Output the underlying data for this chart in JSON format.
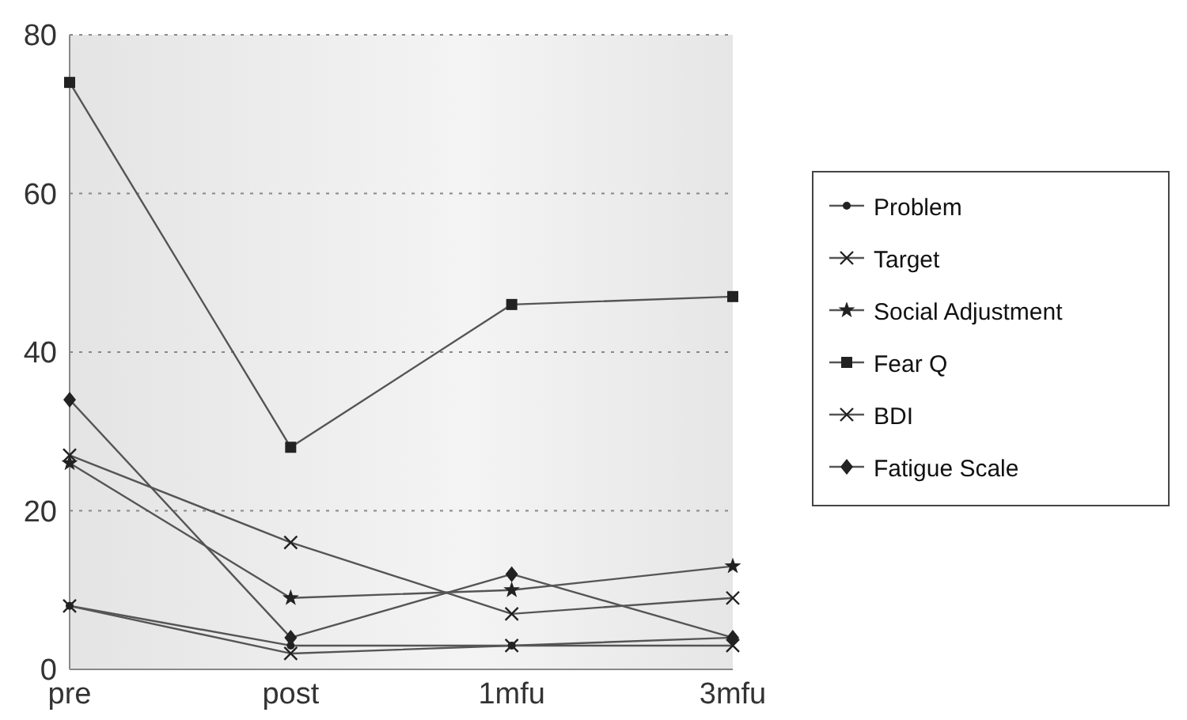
{
  "chart_data": {
    "type": "line",
    "categories": [
      "pre",
      "post",
      "1mfu",
      "3mfu"
    ],
    "series": [
      {
        "name": "Problem",
        "color": "#555555",
        "marker": "circle",
        "values": [
          8,
          3,
          3,
          4
        ]
      },
      {
        "name": "Target",
        "color": "#555555",
        "marker": "cross",
        "values": [
          8,
          2,
          3,
          3
        ]
      },
      {
        "name": "Social Adjustment",
        "color": "#555555",
        "marker": "star",
        "values": [
          26,
          9,
          10,
          13
        ]
      },
      {
        "name": "Fear Q",
        "color": "#555555",
        "marker": "square",
        "values": [
          74,
          28,
          46,
          47
        ]
      },
      {
        "name": "BDI",
        "color": "#555555",
        "marker": "cross",
        "values": [
          27,
          16,
          7,
          9
        ]
      },
      {
        "name": "Fatigue Scale",
        "color": "#555555",
        "marker": "diamond",
        "values": [
          34,
          4,
          12,
          4
        ]
      }
    ],
    "ylim": [
      0,
      80
    ],
    "yticks": [
      0,
      20,
      40,
      60,
      80
    ],
    "grid": "y",
    "legend": "right",
    "line_style": "solid"
  }
}
